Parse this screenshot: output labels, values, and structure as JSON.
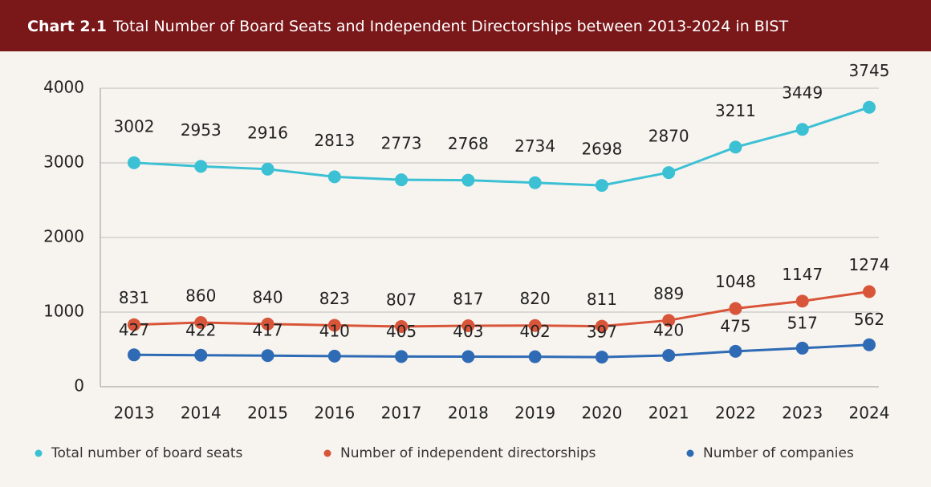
{
  "chart_data": {
    "type": "line",
    "label": "Chart 2.1",
    "title": "Total Number of Board Seats and Independent Directorships between 2013-2024 in BIST",
    "categories": [
      "2013",
      "2014",
      "2015",
      "2016",
      "2017",
      "2018",
      "2019",
      "2020",
      "2021",
      "2022",
      "2023",
      "2024"
    ],
    "series": [
      {
        "name": "Total number of board seats",
        "color": "#3cc0d4",
        "values": [
          3002,
          2953,
          2916,
          2813,
          2773,
          2768,
          2734,
          2698,
          2870,
          3211,
          3449,
          3745
        ]
      },
      {
        "name": "Number of independent directorships",
        "color": "#d9553a",
        "values": [
          831,
          860,
          840,
          823,
          807,
          817,
          820,
          811,
          889,
          1048,
          1147,
          1274
        ]
      },
      {
        "name": "Number of companies",
        "color": "#2f6bb5",
        "values": [
          427,
          422,
          417,
          410,
          405,
          403,
          402,
          397,
          420,
          475,
          517,
          562
        ]
      }
    ],
    "ylim": [
      0,
      4000
    ],
    "yticks": [
      0,
      1000,
      2000,
      3000,
      4000
    ],
    "grid": true
  }
}
